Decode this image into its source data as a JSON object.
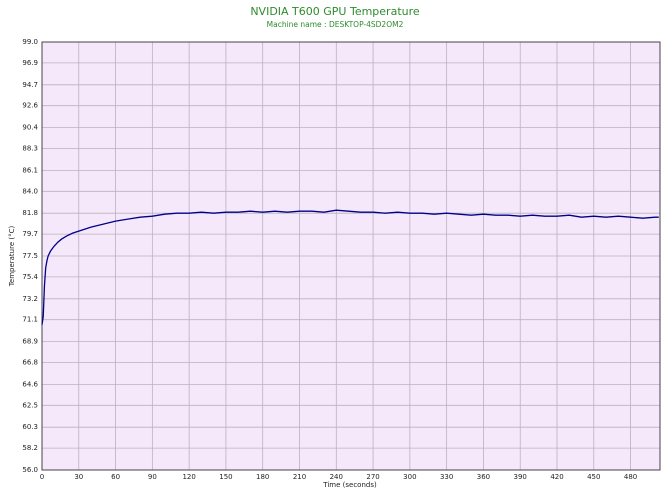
{
  "chart_data": {
    "type": "line",
    "title": "NVIDIA T600 GPU Temperature",
    "subtitle": "Machine name : DESKTOP-4SD2OM2",
    "x_label": "Time (seconds)",
    "y_label": "Temperature (°C)",
    "x": [
      0,
      1,
      2,
      3,
      4,
      5,
      7,
      10,
      13,
      16,
      20,
      25,
      30,
      35,
      40,
      50,
      60,
      70,
      80,
      90,
      100,
      110,
      120,
      130,
      140,
      150,
      160,
      170,
      180,
      190,
      200,
      210,
      220,
      230,
      240,
      250,
      260,
      270,
      280,
      290,
      300,
      310,
      320,
      330,
      340,
      350,
      360,
      370,
      380,
      390,
      400,
      410,
      420,
      430,
      440,
      450,
      460,
      470,
      480,
      490,
      500,
      503
    ],
    "series": [
      {
        "name": "Temperature",
        "color": "#00008b",
        "values": [
          70.6,
          71.4,
          74.5,
          76.3,
          77.0,
          77.5,
          78.0,
          78.5,
          78.9,
          79.2,
          79.5,
          79.8,
          80.0,
          80.2,
          80.4,
          80.7,
          81.0,
          81.2,
          81.4,
          81.5,
          81.7,
          81.8,
          81.8,
          81.9,
          81.8,
          81.9,
          81.9,
          82.0,
          81.9,
          82.0,
          81.9,
          82.0,
          82.0,
          81.9,
          82.1,
          82.0,
          81.9,
          81.9,
          81.8,
          81.9,
          81.8,
          81.8,
          81.7,
          81.8,
          81.7,
          81.6,
          81.7,
          81.6,
          81.6,
          81.5,
          81.6,
          81.5,
          81.5,
          81.6,
          81.4,
          81.5,
          81.4,
          81.5,
          81.4,
          81.3,
          81.4,
          81.4
        ]
      }
    ],
    "xlim": [
      0,
      504
    ],
    "xticks": [
      0,
      30,
      60,
      90,
      120,
      150,
      180,
      210,
      240,
      270,
      300,
      330,
      360,
      390,
      420,
      450,
      480
    ],
    "ylim": [
      56,
      99
    ],
    "yticks": [
      {
        "value": 56,
        "label": "56.0"
      },
      58.2,
      60.3,
      62.5,
      64.6,
      66.8,
      68.9,
      71.1,
      73.2,
      75.4,
      77.5,
      79.7,
      81.8,
      {
        "value": 84,
        "label": "84.0"
      },
      86.1,
      88.3,
      90.4,
      92.6,
      94.7,
      96.9,
      {
        "value": 99,
        "label": "99.0"
      }
    ],
    "grid": true,
    "background": "#f5e8fb"
  }
}
